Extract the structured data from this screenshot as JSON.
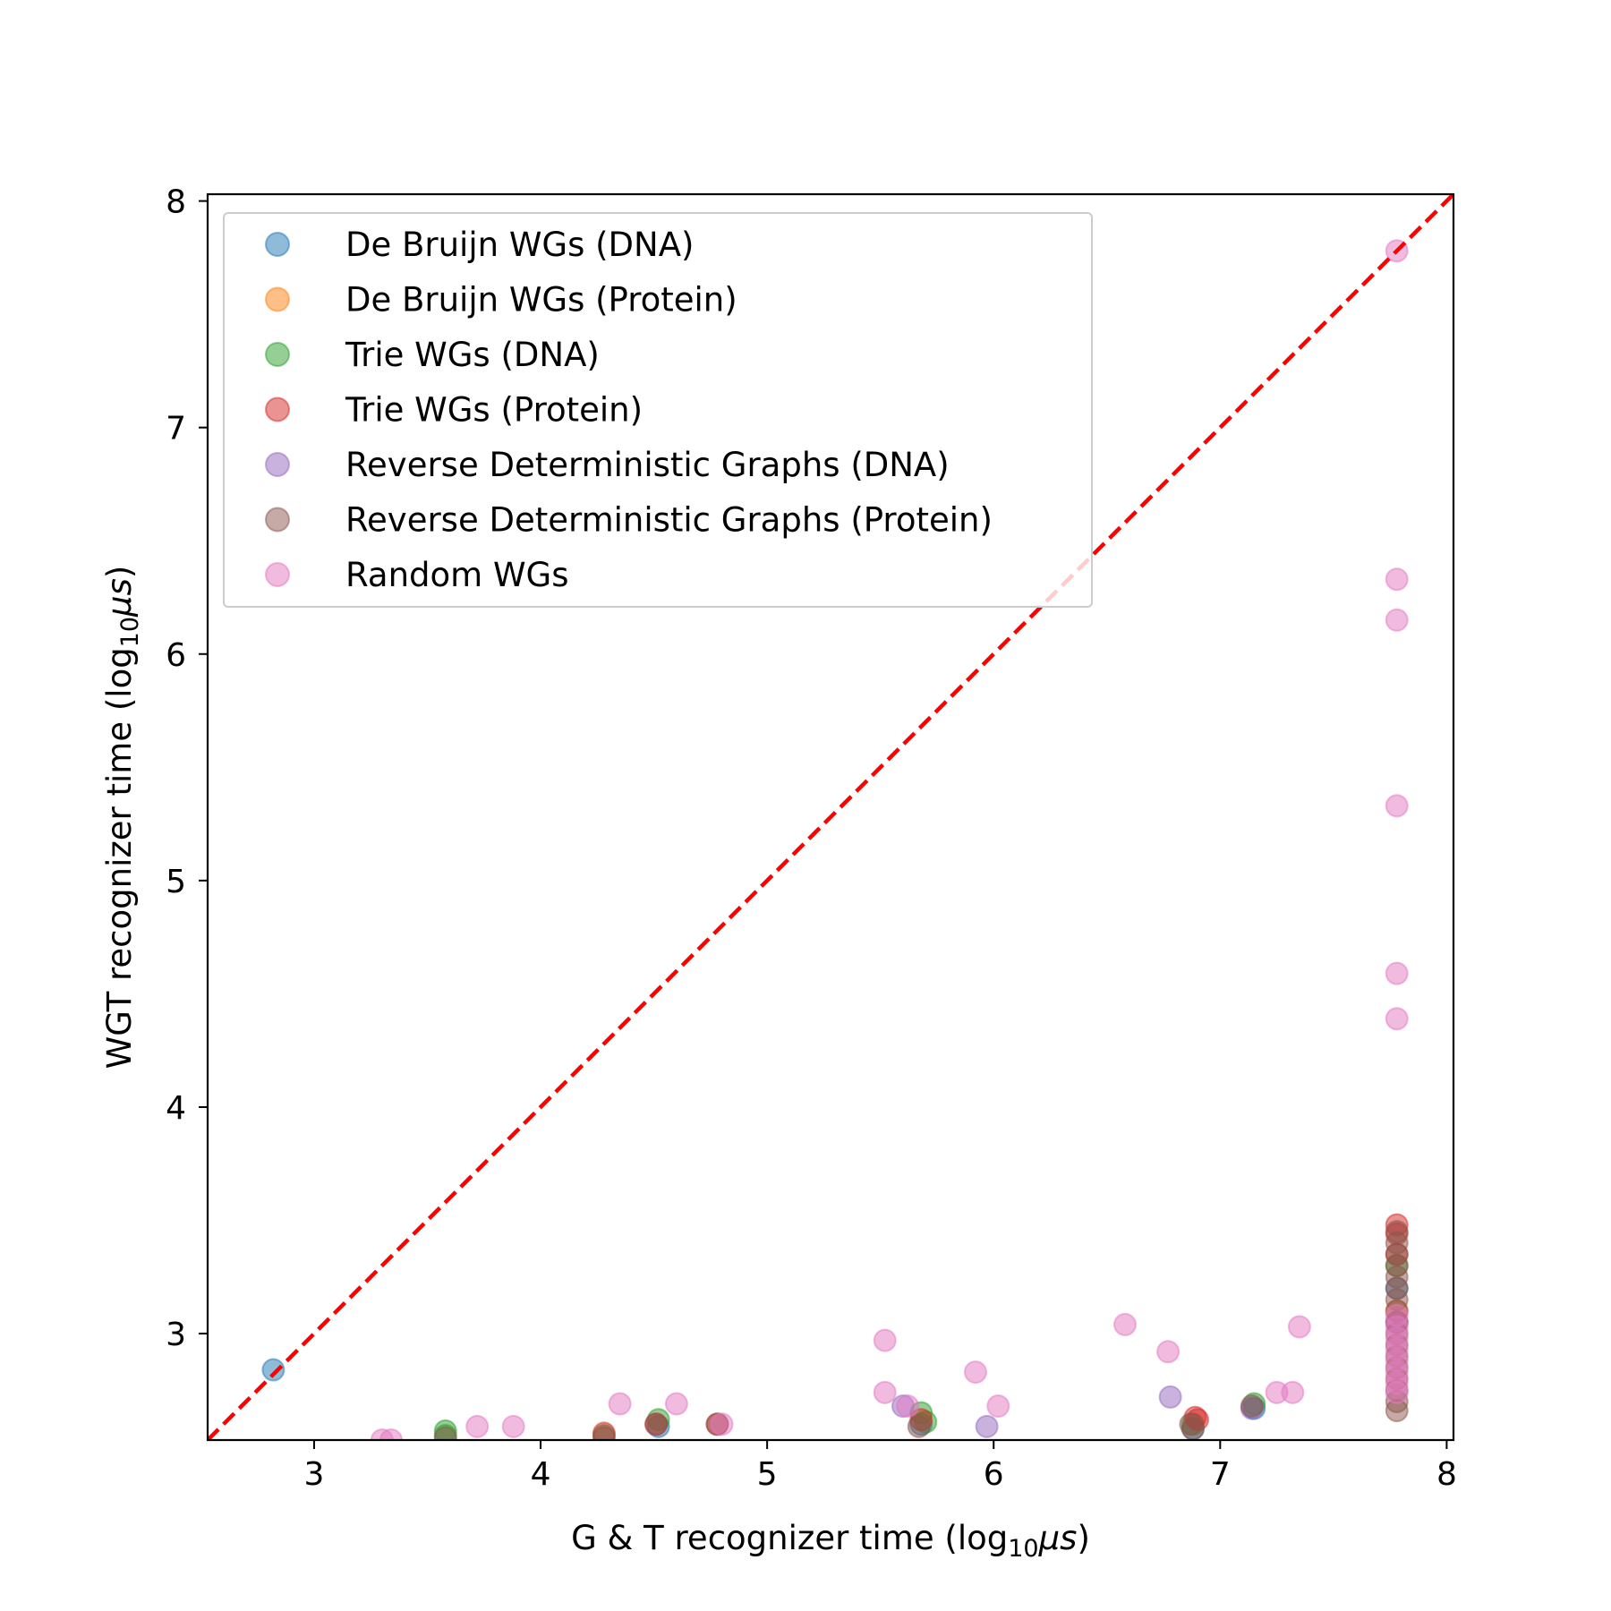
{
  "chart_data": {
    "type": "scatter",
    "xlabel": {
      "pre": "G & T recognizer time (log",
      "sub": "10",
      "var": "μs",
      "post": ")"
    },
    "ylabel": {
      "pre": "WGT recognizer time (log",
      "sub": "10",
      "var": "μs",
      "post": ")"
    },
    "xlim": [
      2.53,
      8.03
    ],
    "ylim": [
      2.53,
      8.03
    ],
    "xticks": [
      3,
      4,
      5,
      6,
      7,
      8
    ],
    "yticks": [
      3,
      4,
      5,
      6,
      7,
      8
    ],
    "grid": false,
    "legend_position": "top-left",
    "reference_line": {
      "from": [
        2.53,
        2.53
      ],
      "to": [
        8.03,
        8.03
      ],
      "style": "dashed",
      "color": "#ff0000"
    },
    "series": [
      {
        "name": "De Bruijn WGs (DNA)",
        "color": "#1f77b4",
        "points": [
          [
            2.82,
            2.84
          ],
          [
            4.52,
            2.59
          ],
          [
            5.68,
            2.6
          ],
          [
            6.88,
            2.58
          ],
          [
            7.15,
            2.67
          ],
          [
            7.78,
            3.2
          ]
        ]
      },
      {
        "name": "De Bruijn WGs (Protein)",
        "color": "#ff7f0e",
        "points": [
          [
            7.78,
            3.1
          ]
        ]
      },
      {
        "name": "Trie WGs (DNA)",
        "color": "#2ca02c",
        "points": [
          [
            3.58,
            2.57
          ],
          [
            3.58,
            2.55
          ],
          [
            4.52,
            2.62
          ],
          [
            4.28,
            2.55
          ],
          [
            5.68,
            2.65
          ],
          [
            5.7,
            2.61
          ],
          [
            6.88,
            2.6
          ],
          [
            7.15,
            2.69
          ],
          [
            7.78,
            3.3
          ]
        ]
      },
      {
        "name": "Trie WGs (Protein)",
        "color": "#d62728",
        "points": [
          [
            4.28,
            2.56
          ],
          [
            4.51,
            2.6
          ],
          [
            4.78,
            2.6
          ],
          [
            5.68,
            2.62
          ],
          [
            6.89,
            2.63
          ],
          [
            6.9,
            2.62
          ],
          [
            7.78,
            3.48
          ],
          [
            7.78,
            3.44
          ],
          [
            7.78,
            3.35
          ]
        ]
      },
      {
        "name": "Reverse Deterministic Graphs (DNA)",
        "color": "#9467bd",
        "points": [
          [
            5.6,
            2.68
          ],
          [
            5.97,
            2.59
          ],
          [
            6.78,
            2.72
          ],
          [
            7.14,
            2.67
          ],
          [
            7.78,
            3.05
          ]
        ]
      },
      {
        "name": "Reverse Deterministic Graphs (Protein)",
        "color": "#8c564b",
        "points": [
          [
            3.58,
            2.54
          ],
          [
            4.28,
            2.54
          ],
          [
            4.51,
            2.6
          ],
          [
            4.78,
            2.6
          ],
          [
            5.67,
            2.59
          ],
          [
            6.87,
            2.6
          ],
          [
            6.88,
            2.58
          ],
          [
            7.14,
            2.68
          ],
          [
            7.78,
            3.45
          ],
          [
            7.78,
            3.4
          ],
          [
            7.78,
            3.35
          ],
          [
            7.78,
            3.3
          ],
          [
            7.78,
            3.25
          ],
          [
            7.78,
            3.2
          ],
          [
            7.78,
            3.15
          ],
          [
            7.78,
            3.1
          ],
          [
            7.78,
            3.05
          ],
          [
            7.78,
            3.0
          ],
          [
            7.78,
            2.95
          ],
          [
            7.78,
            2.9
          ],
          [
            7.78,
            2.85
          ],
          [
            7.78,
            2.8
          ],
          [
            7.78,
            2.75
          ],
          [
            7.78,
            2.7
          ],
          [
            7.78,
            2.66
          ]
        ]
      },
      {
        "name": "Random WGs",
        "color": "#e377c2",
        "points": [
          [
            3.3,
            2.53
          ],
          [
            3.34,
            2.53
          ],
          [
            3.72,
            2.59
          ],
          [
            3.88,
            2.59
          ],
          [
            4.35,
            2.69
          ],
          [
            4.6,
            2.69
          ],
          [
            4.8,
            2.6
          ],
          [
            5.52,
            2.97
          ],
          [
            5.52,
            2.74
          ],
          [
            5.62,
            2.68
          ],
          [
            5.92,
            2.83
          ],
          [
            6.02,
            2.68
          ],
          [
            6.58,
            3.04
          ],
          [
            6.77,
            2.92
          ],
          [
            7.25,
            2.74
          ],
          [
            7.32,
            2.74
          ],
          [
            7.35,
            3.03
          ],
          [
            7.78,
            7.78
          ],
          [
            7.78,
            6.33
          ],
          [
            7.78,
            6.15
          ],
          [
            7.78,
            5.33
          ],
          [
            7.78,
            4.59
          ],
          [
            7.78,
            4.39
          ],
          [
            7.78,
            3.08
          ],
          [
            7.78,
            3.03
          ],
          [
            7.78,
            2.98
          ],
          [
            7.78,
            2.93
          ],
          [
            7.78,
            2.88
          ],
          [
            7.78,
            2.83
          ],
          [
            7.78,
            2.78
          ],
          [
            7.78,
            2.74
          ]
        ]
      }
    ]
  }
}
